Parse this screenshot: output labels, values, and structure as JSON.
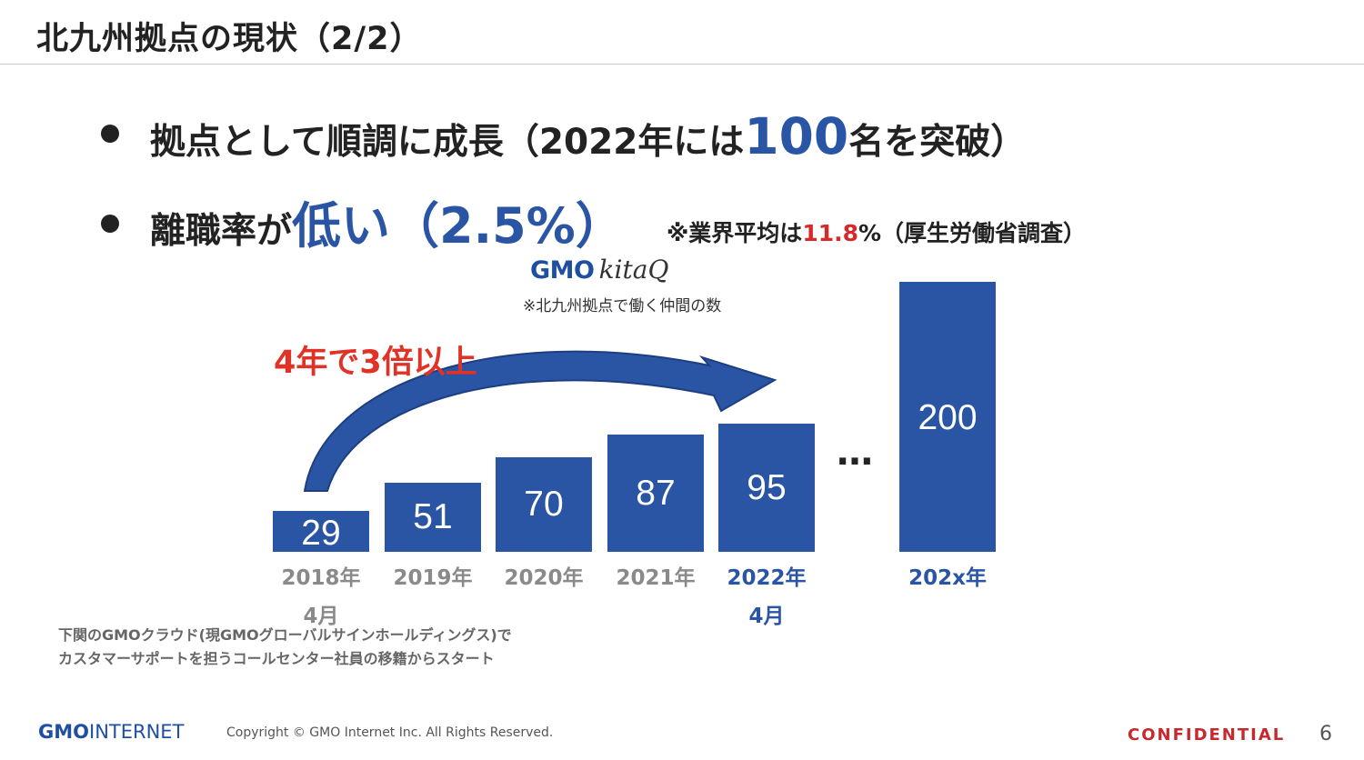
{
  "title": "北九州拠点の現状（2/2）",
  "bullets": [
    {
      "pre": "拠点として順調に成長（2022年には",
      "highlight": "100",
      "post": "名を突破）"
    },
    {
      "pre": "離職率が",
      "highlight": "低い（2.5%）",
      "note_pre": "※業界平均は",
      "note_value": "11.8",
      "note_post": "%（厚生労働省調査）"
    }
  ],
  "logo": {
    "gmo": "GMO",
    "kitaq": "kitaQ"
  },
  "chart_note": "※北九州拠点で働く仲間の数",
  "growth_label": "4年で3倍以上",
  "ellipsis": "…",
  "chart_data": {
    "type": "bar",
    "categories": [
      "2018年\n4月",
      "2019年",
      "2020年",
      "2021年",
      "2022年\n4月",
      "202x年"
    ],
    "values": [
      29,
      51,
      70,
      87,
      95,
      200
    ],
    "title": "",
    "xlabel": "",
    "ylabel": "",
    "colors": {
      "bar": "#2a55a5",
      "past_label": "#8a8a8a",
      "highlight_label": "#2a55a5"
    }
  },
  "footnote": [
    "下関のGMOクラウド(現GMOグローバルサインホールディングス)で",
    "カスタマーサポートを担うコールセンター社員の移籍からスタート"
  ],
  "footer": {
    "logo_gmo": "GMO",
    "logo_rest": "INTERNET",
    "copyright": "Copyright © GMO Internet Inc. All Rights Reserved.",
    "confidential": "CONFIDENTIAL",
    "page_number": "6"
  }
}
